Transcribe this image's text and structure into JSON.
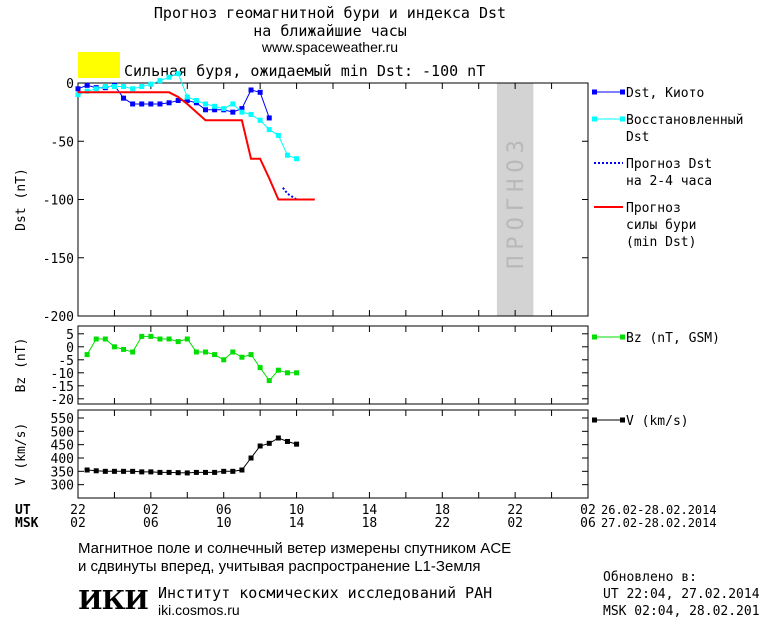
{
  "header": {
    "title_line1": "Прогноз геомагнитной бури и индекса Dst",
    "title_line2": "на ближайшие часы",
    "site": "www.spaceweather.ru",
    "alert_text": "Сильная буря, ожидаемый min Dst: -100 nT",
    "alert_color": "#ffff00"
  },
  "colors": {
    "dst": "#0000ff",
    "restored": "#00ffff",
    "forecast": "#0000ff",
    "storm": "#ff0000",
    "bz": "#00dd00",
    "v": "#000000",
    "forecast_band": "#d3d3d3"
  },
  "time_axis": {
    "ut_label": "UT",
    "msk_label": "MSK",
    "ut_ticks": [
      "22",
      "02",
      "06",
      "10",
      "14",
      "18",
      "22",
      "02"
    ],
    "msk_ticks": [
      "02",
      "06",
      "10",
      "14",
      "18",
      "22",
      "02",
      "06"
    ],
    "ut_range": "26.02-28.02.2014",
    "msk_range": "27.02-28.02.2014"
  },
  "chart_data": [
    {
      "type": "line",
      "ylabel": "Dst (nT)",
      "ylim": [
        -200,
        0
      ],
      "yticks": [
        "0",
        "-50",
        "-100",
        "-150",
        "-200"
      ],
      "x_unit": "hours from 22 UT 26.02.2014",
      "forecast_band_label": "ПРОГНОЗ",
      "forecast_band_x": [
        46,
        50
      ],
      "series": [
        {
          "name": "Dst, Киото",
          "x": [
            0,
            1,
            2,
            3,
            4,
            5,
            6,
            7,
            8,
            9,
            10,
            11,
            12,
            13,
            14,
            15,
            16,
            17,
            18,
            19,
            20,
            21
          ],
          "values": [
            -5,
            -2,
            -4,
            -4,
            -2,
            -13,
            -18,
            -18,
            -18,
            -18,
            -17,
            -15,
            -15,
            -17,
            -23,
            -23,
            -23,
            -25,
            -22,
            -6,
            -8,
            -30
          ]
        },
        {
          "name": "Восстановленный Dst",
          "x": [
            0,
            1,
            2,
            3,
            4,
            5,
            6,
            7,
            8,
            9,
            10,
            11,
            12,
            13,
            14,
            15,
            16,
            17,
            18,
            19,
            20,
            21,
            22,
            23,
            24
          ],
          "values": [
            -10,
            -7,
            -5,
            -3,
            -3,
            -3,
            -5,
            -3,
            -1,
            2,
            5,
            8,
            -12,
            -15,
            -18,
            -20,
            -22,
            -18,
            -25,
            -27,
            -32,
            -40,
            -45,
            -62,
            -65
          ]
        },
        {
          "name": "Прогноз Dst на 2-4 часа",
          "x": [
            22.5,
            23,
            24,
            25
          ],
          "values": [
            -90,
            -95,
            -100,
            -100
          ]
        },
        {
          "name": "Прогноз силы бури (min Dst)",
          "x": [
            0,
            10,
            11,
            12,
            13,
            14,
            15,
            16,
            17,
            18,
            19,
            20,
            21,
            22,
            23,
            24,
            25,
            26
          ],
          "values": [
            -8,
            -8,
            -12,
            -18,
            -25,
            -32,
            -32,
            -32,
            -32,
            -32,
            -65,
            -65,
            -82,
            -100,
            -100,
            -100,
            -100,
            -100
          ]
        }
      ]
    },
    {
      "type": "line",
      "ylabel": "Bz (nT)",
      "ylim": [
        -22,
        8
      ],
      "yticks": [
        "5",
        "0",
        "-5",
        "-10",
        "-15",
        "-20"
      ],
      "series": [
        {
          "name": "Bz (nT, GSM)",
          "x": [
            1,
            2,
            3,
            4,
            5,
            6,
            7,
            8,
            9,
            10,
            11,
            12,
            13,
            14,
            15,
            16,
            17,
            18,
            19,
            20,
            21,
            22,
            23,
            24
          ],
          "values": [
            -3,
            3,
            3,
            0,
            -1,
            -2,
            4,
            4,
            3,
            3,
            2,
            3,
            -2,
            -2,
            -3,
            -5,
            -2,
            -4,
            -3,
            -8,
            -13,
            -9,
            -10,
            -10
          ]
        }
      ]
    },
    {
      "type": "line",
      "ylabel": "V (km/s)",
      "ylim": [
        250,
        580
      ],
      "yticks": [
        "550",
        "500",
        "450",
        "400",
        "350",
        "300"
      ],
      "series": [
        {
          "name": "V (km/s)",
          "x": [
            1,
            2,
            3,
            4,
            5,
            6,
            7,
            8,
            9,
            10,
            11,
            12,
            13,
            14,
            15,
            16,
            17,
            18,
            19,
            20,
            21,
            22,
            23,
            24
          ],
          "values": [
            355,
            352,
            350,
            350,
            350,
            350,
            348,
            348,
            346,
            346,
            345,
            344,
            346,
            346,
            346,
            350,
            350,
            355,
            400,
            445,
            455,
            475,
            462,
            452
          ]
        }
      ]
    }
  ],
  "footer": {
    "line1": "Магнитное поле и солнечный ветер измерены спутником ACE",
    "line2": "и сдвинуты вперед, учитывая распространение L1-Земля",
    "logo_text": "ИКИ",
    "institute": "Институт космических исследований РАН",
    "institute_url": "iki.cosmos.ru",
    "updated_label": "Обновлено в:",
    "updated_ut": "UT  22:04, 27.02.2014",
    "updated_msk": "MSK 02:04, 28.02.2014"
  }
}
